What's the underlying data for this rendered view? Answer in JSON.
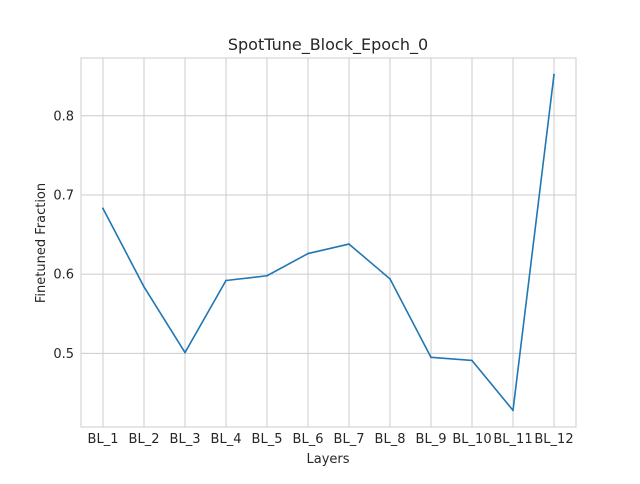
{
  "chart_data": {
    "type": "line",
    "title": "SpotTune_Block_Epoch_0",
    "xlabel": "Layers",
    "ylabel": "Finetuned Fraction",
    "categories": [
      "BL_1",
      "BL_2",
      "BL_3",
      "BL_4",
      "BL_5",
      "BL_6",
      "BL_7",
      "BL_8",
      "BL_9",
      "BL_10",
      "BL_11",
      "BL_12"
    ],
    "series": [
      {
        "values": [
          0.683,
          0.584,
          0.501,
          0.592,
          0.598,
          0.626,
          0.638,
          0.594,
          0.495,
          0.491,
          0.428,
          0.852
        ],
        "color": "#1f77b4"
      }
    ],
    "yticks": [
      0.5,
      0.6,
      0.7,
      0.8
    ],
    "ytick_labels": [
      "0.5",
      "0.6",
      "0.7",
      "0.8"
    ],
    "ylim": [
      0.407,
      0.873
    ],
    "grid": true,
    "grid_color": "#cccccc",
    "axes_edge_color": "#cccccc"
  }
}
